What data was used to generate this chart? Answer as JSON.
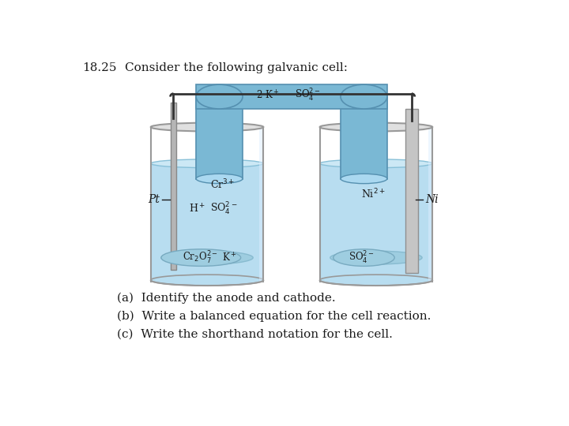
{
  "title_number": "18.25",
  "title_text": "Consider the following galvanic cell:",
  "question_a": "(a)  Identify the anode and cathode.",
  "question_b": "(b)  Write a balanced equation for the cell reaction.",
  "question_c": "(c)  Write the shorthand notation for the cell.",
  "left_electrode_label": "Pt",
  "right_electrode_label": "Ni",
  "salt_bridge_label_left": "2 K",
  "salt_bridge_label_right": "SO",
  "bg_color": "#ffffff",
  "beaker_fill_light": "#b8ddf0",
  "beaker_fill_mid": "#8ec8e8",
  "beaker_fill_dark": "#6ab0d8",
  "beaker_wall_color": "#999999",
  "beaker_rim_color": "#aaaaaa",
  "salt_bridge_color": "#7ab8d4",
  "salt_bridge_edge": "#5590b0",
  "electrode_pt_color": "#b8b8b8",
  "electrode_ni_color": "#c8c8c8",
  "electrode_ni_edge": "#999999",
  "wire_color": "#333333",
  "text_color": "#1a1a1a",
  "ion_text_color": "#1a1a1a",
  "font_size_title": 11,
  "font_size_ions": 9,
  "font_size_questions": 11,
  "font_size_electrode": 10
}
